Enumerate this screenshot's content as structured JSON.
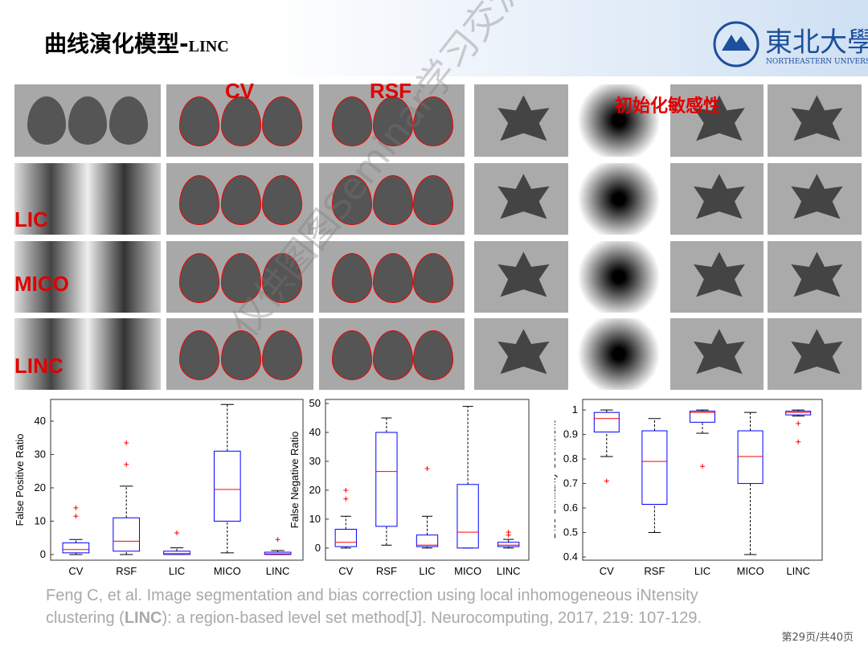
{
  "slide": {
    "title": "曲线演化模型-",
    "title_sub": "LINC",
    "logo": {
      "name": "東北大學",
      "subtitle": "NORTHEASTERN UNIVERSITY"
    },
    "labels": {
      "cv": "CV",
      "rsf": "RSF",
      "init": "初始化敏感性",
      "lic": "LIC",
      "mico": "MICO",
      "linc": "LINC"
    },
    "watermark": "仅供图图Seminar学习交流使用",
    "citation": {
      "line1": "Feng C, et al. Image segmentation and bias correction using local inhomogeneous iNtensity",
      "line2_a": "clustering (",
      "line2_b": "LINC",
      "line2_c": "): a region-based level set method[J]. Neurocomputing, 2017, 219: 107-129."
    },
    "page": "第29页/共40页"
  },
  "chart_data": [
    {
      "type": "box",
      "y_label": "False Positive Ratio",
      "categories": [
        "CV",
        "RSF",
        "LIC",
        "MICO",
        "LINC"
      ],
      "box_color": "#0000ff",
      "median_color": "#ff0000",
      "outlier_color": "#ff0000",
      "ylim": [
        -1.7,
        46.5
      ],
      "yticks": [
        0,
        10,
        20,
        30,
        40
      ],
      "boxes": [
        {
          "min": 0,
          "q1": 0.5,
          "median": 1.5,
          "q3": 3.5,
          "max": 4.5,
          "outliers": [
            11.5,
            14
          ]
        },
        {
          "min": 0,
          "q1": 1,
          "median": 4,
          "q3": 11,
          "max": 20.5,
          "outliers": [
            27,
            33.5
          ]
        },
        {
          "min": 0,
          "q1": 0,
          "median": 0.3,
          "q3": 1,
          "max": 2,
          "outliers": [
            6.5
          ]
        },
        {
          "min": 0.5,
          "q1": 10,
          "median": 19.5,
          "q3": 31,
          "max": 45,
          "outliers": []
        },
        {
          "min": 0,
          "q1": 0,
          "median": 0.2,
          "q3": 0.7,
          "max": 1.2,
          "outliers": [
            4.5
          ]
        }
      ]
    },
    {
      "type": "box",
      "y_label": "False Negative Ratio",
      "categories": [
        "CV",
        "RSF",
        "LIC",
        "MICO",
        "LINC"
      ],
      "box_color": "#0000ff",
      "median_color": "#ff0000",
      "outlier_color": "#ff0000",
      "ylim": [
        -4.2,
        51.4
      ],
      "yticks": [
        0,
        10,
        20,
        30,
        40,
        50
      ],
      "boxes": [
        {
          "min": 0,
          "q1": 0.5,
          "median": 2,
          "q3": 6.5,
          "max": 11,
          "outliers": [
            17,
            20
          ]
        },
        {
          "min": 1,
          "q1": 7.5,
          "median": 26.5,
          "q3": 40,
          "max": 45,
          "outliers": []
        },
        {
          "min": 0,
          "q1": 0.5,
          "median": 1,
          "q3": 4.5,
          "max": 11,
          "outliers": [
            27.5
          ]
        },
        {
          "min": 0,
          "q1": 0,
          "median": 5.5,
          "q3": 22,
          "max": 49,
          "outliers": []
        },
        {
          "min": 0,
          "q1": 0.5,
          "median": 1,
          "q3": 2,
          "max": 3,
          "outliers": [
            4.5,
            5.5
          ]
        }
      ]
    },
    {
      "type": "box",
      "y_label": "Dice Similarity Coefficient",
      "categories": [
        "CV",
        "RSF",
        "LIC",
        "MICO",
        "LINC"
      ],
      "box_color": "#0000ff",
      "median_color": "#ff0000",
      "outlier_color": "#ff0000",
      "ylim": [
        0.387,
        1.043
      ],
      "yticks": [
        0.4,
        0.5,
        0.6,
        0.7,
        0.8,
        0.9,
        1
      ],
      "boxes": [
        {
          "min": 0.81,
          "q1": 0.91,
          "median": 0.965,
          "q3": 0.99,
          "max": 1.0,
          "outliers": [
            0.71
          ]
        },
        {
          "min": 0.5,
          "q1": 0.615,
          "median": 0.79,
          "q3": 0.915,
          "max": 0.965,
          "outliers": []
        },
        {
          "min": 0.905,
          "q1": 0.95,
          "median": 0.99,
          "q3": 0.995,
          "max": 1.0,
          "outliers": [
            0.77
          ]
        },
        {
          "min": 0.41,
          "q1": 0.7,
          "median": 0.81,
          "q3": 0.915,
          "max": 0.99,
          "outliers": []
        },
        {
          "min": 0.975,
          "q1": 0.98,
          "median": 0.99,
          "q3": 0.995,
          "max": 1.0,
          "outliers": [
            0.945,
            0.87
          ]
        }
      ]
    }
  ]
}
